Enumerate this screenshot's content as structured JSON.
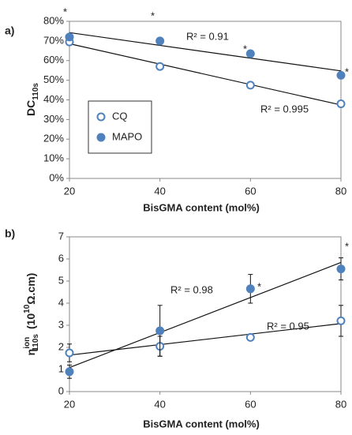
{
  "chart_data": [
    {
      "type": "scatter",
      "panel": "a)",
      "ylabel": "DC",
      "ylabel_sub": "110s",
      "xlabel": "BisGMA content (mol%)",
      "x": [
        20,
        40,
        60,
        80
      ],
      "series": [
        {
          "name": "CQ",
          "color": "#4f81bd",
          "filled": false,
          "values": [
            69.5,
            57,
            47.5,
            38
          ]
        },
        {
          "name": "MAPO",
          "color": "#4f81bd",
          "filled": true,
          "values": [
            72,
            70,
            63.5,
            52.5
          ]
        }
      ],
      "xlim": [
        20,
        80
      ],
      "xticks": [
        20,
        40,
        60,
        80
      ],
      "ylim": [
        0,
        80
      ],
      "yticks": [
        {
          "value": 0,
          "label": "0%"
        },
        {
          "value": 10,
          "label": "10%"
        },
        {
          "value": 20,
          "label": "20%"
        },
        {
          "value": 30,
          "label": "30%"
        },
        {
          "value": 40,
          "label": "40%"
        },
        {
          "value": 50,
          "label": "50%"
        },
        {
          "value": 60,
          "label": "60%"
        },
        {
          "value": 70,
          "label": "70%"
        },
        {
          "value": 80,
          "label": "80%"
        }
      ],
      "trendlines": true,
      "legend": "left",
      "annotations": [
        "R² = 0.91",
        "R² = 0.995",
        "*"
      ]
    },
    {
      "type": "scatter",
      "panel": "b)",
      "ylabel": "η",
      "ylabel_sup": "ion",
      "ylabel_sub": "110s",
      "ylabel_unit": "(10",
      "ylabel_unit_sup": "10",
      "ylabel_unit_end": "Ω.cm)",
      "xlabel": "BisGMA content (mol%)",
      "x": [
        20,
        40,
        60,
        80
      ],
      "series": [
        {
          "color": "#4f81bd",
          "filled": false,
          "values": [
            1.75,
            2.05,
            2.45,
            3.2
          ],
          "errors": [
            0.4,
            0.45,
            0.1,
            0.7
          ]
        },
        {
          "color": "#4f81bd",
          "filled": true,
          "values": [
            0.9,
            2.75,
            4.65,
            5.55
          ],
          "errors": [
            0.3,
            1.15,
            0.65,
            0.5
          ]
        }
      ],
      "xlim": [
        20,
        80
      ],
      "xticks": [
        20,
        40,
        60,
        80
      ],
      "ylim": [
        0,
        7
      ],
      "yticks": [
        0,
        1,
        2,
        3,
        4,
        5,
        6,
        7
      ],
      "trendlines": true,
      "annotations": [
        "R² = 0.98",
        "R² = 0.95",
        "*"
      ]
    }
  ]
}
